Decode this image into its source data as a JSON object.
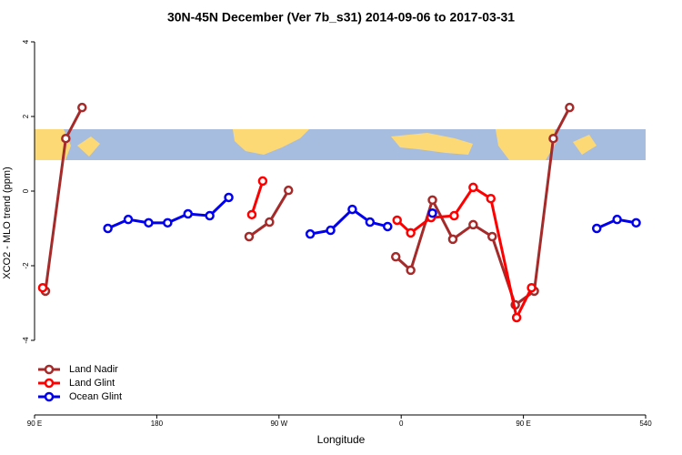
{
  "chart_data": {
    "type": "line",
    "title": "30N-45N December (Ver 7b_s31)   2014-09-06 to 2017-03-31",
    "xlabel": "Longitude",
    "ylabel": "XCO2 - MLO trend (ppm)",
    "xlim": [
      90,
      540
    ],
    "ylim": [
      -6,
      4.4
    ],
    "xticks": [
      {
        "value": 90,
        "label": "90 E"
      },
      180,
      {
        "value": 270,
        "label": "90 W"
      },
      {
        "value": 360,
        "label": "0"
      },
      {
        "value": 450,
        "label": "90 E"
      },
      540
    ],
    "yticks": [
      -4,
      -2,
      0,
      2,
      4
    ],
    "legend": "bottom-left",
    "series": [
      {
        "name": "Land Nadir",
        "color": "#a52a2a",
        "x": [
          98,
          113,
          125,
          null,
          248,
          263,
          277,
          null,
          356,
          367,
          383,
          398,
          413,
          427,
          444,
          458,
          472,
          484
        ],
        "values": [
          -2.68,
          1.41,
          2.24,
          null,
          -1.22,
          -0.83,
          0.02,
          null,
          -1.76,
          -2.12,
          -0.24,
          -1.29,
          -0.9,
          -1.22,
          -3.05,
          -2.68,
          1.41,
          2.24
        ]
      },
      {
        "name": "Land Glint",
        "color": "#ff0000",
        "x": [
          96,
          null,
          250,
          258,
          null,
          357,
          367,
          382,
          399,
          413,
          426,
          445,
          456
        ],
        "values": [
          -2.59,
          null,
          -0.63,
          0.27,
          null,
          -0.78,
          -1.12,
          -0.71,
          -0.66,
          0.1,
          -0.2,
          -3.39,
          -2.59
        ]
      },
      {
        "name": "Ocean Glint",
        "color": "#0000ee",
        "x": [
          144,
          159,
          174,
          188,
          203,
          219,
          233,
          null,
          293,
          308,
          324,
          337,
          350,
          null,
          383,
          null,
          504,
          519,
          533
        ],
        "values": [
          -1.0,
          -0.76,
          -0.85,
          -0.85,
          -0.61,
          -0.66,
          -0.17,
          null,
          -1.15,
          -1.05,
          -0.49,
          -0.83,
          -0.95,
          null,
          -0.59,
          null,
          -1.0,
          -0.76,
          -0.85
        ]
      }
    ]
  }
}
